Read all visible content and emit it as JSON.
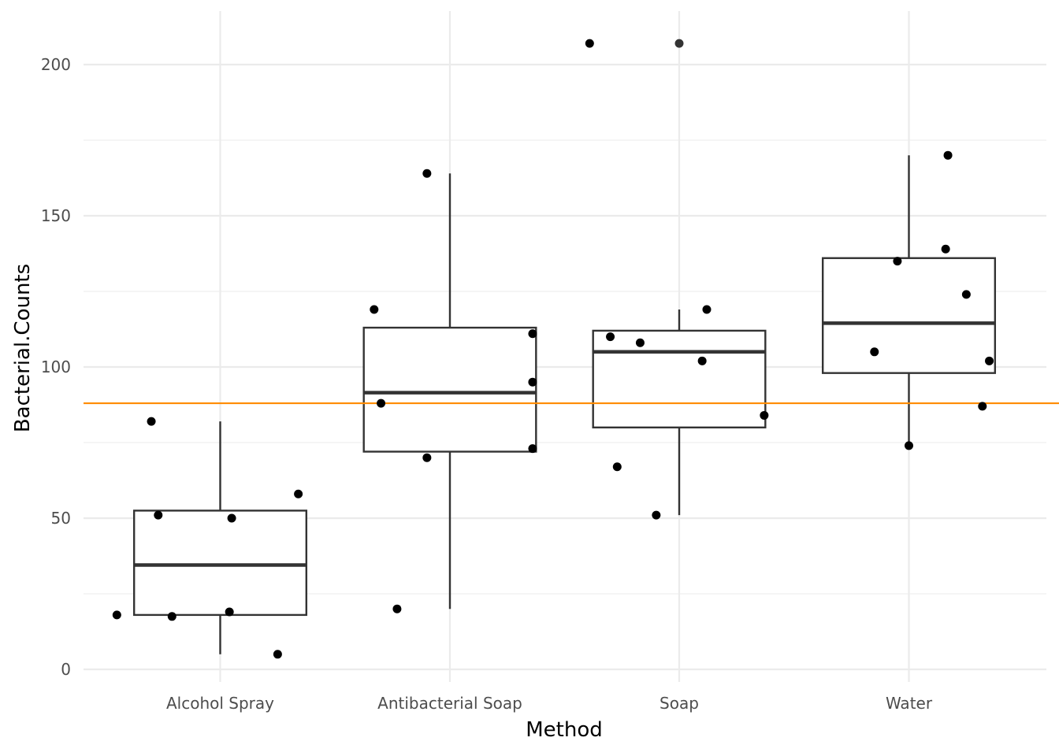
{
  "chart_data": {
    "type": "box",
    "xlabel": "Method",
    "ylabel": "Bacterial.Counts",
    "categories": [
      "Alcohol Spray",
      "Antibacterial Soap",
      "Soap",
      "Water"
    ],
    "ylim": [
      -4,
      218
    ],
    "yticks": [
      0,
      50,
      100,
      150,
      200
    ],
    "grid": true,
    "reference_line": {
      "y": 88,
      "color": "#ff8c00"
    },
    "colors": {
      "box": "#333333",
      "points": "#000000",
      "grid": "#ebebeb"
    },
    "boxes": [
      {
        "category": "Alcohol Spray",
        "q1": 18,
        "median": 34.5,
        "q3": 52.5,
        "whisker_low": 5,
        "whisker_high": 82,
        "outliers": []
      },
      {
        "category": "Antibacterial Soap",
        "q1": 72,
        "median": 91.5,
        "q3": 113,
        "whisker_low": 20,
        "whisker_high": 164,
        "outliers": []
      },
      {
        "category": "Soap",
        "q1": 80,
        "median": 105,
        "q3": 112,
        "whisker_low": 51,
        "whisker_high": 119,
        "outliers": [
          207
        ]
      },
      {
        "category": "Water",
        "q1": 98,
        "median": 114.5,
        "q3": 136,
        "whisker_low": 74,
        "whisker_high": 170,
        "outliers": []
      }
    ],
    "points": [
      {
        "category": "Alcohol Spray",
        "jitter": -0.45,
        "y": 18
      },
      {
        "category": "Alcohol Spray",
        "jitter": -0.3,
        "y": 82
      },
      {
        "category": "Alcohol Spray",
        "jitter": -0.27,
        "y": 51
      },
      {
        "category": "Alcohol Spray",
        "jitter": -0.21,
        "y": 17.5
      },
      {
        "category": "Alcohol Spray",
        "jitter": 0.04,
        "y": 19
      },
      {
        "category": "Alcohol Spray",
        "jitter": 0.05,
        "y": 50
      },
      {
        "category": "Alcohol Spray",
        "jitter": 0.25,
        "y": 5
      },
      {
        "category": "Alcohol Spray",
        "jitter": 0.34,
        "y": 58
      },
      {
        "category": "Antibacterial Soap",
        "jitter": -0.33,
        "y": 119
      },
      {
        "category": "Antibacterial Soap",
        "jitter": -0.3,
        "y": 88
      },
      {
        "category": "Antibacterial Soap",
        "jitter": -0.23,
        "y": 20
      },
      {
        "category": "Antibacterial Soap",
        "jitter": -0.1,
        "y": 70
      },
      {
        "category": "Antibacterial Soap",
        "jitter": -0.1,
        "y": 164
      },
      {
        "category": "Antibacterial Soap",
        "jitter": 0.36,
        "y": 111
      },
      {
        "category": "Antibacterial Soap",
        "jitter": 0.36,
        "y": 95
      },
      {
        "category": "Antibacterial Soap",
        "jitter": 0.36,
        "y": 73
      },
      {
        "category": "Soap",
        "jitter": -0.39,
        "y": 207
      },
      {
        "category": "Soap",
        "jitter": -0.3,
        "y": 110
      },
      {
        "category": "Soap",
        "jitter": -0.27,
        "y": 67
      },
      {
        "category": "Soap",
        "jitter": -0.17,
        "y": 108
      },
      {
        "category": "Soap",
        "jitter": -0.1,
        "y": 51
      },
      {
        "category": "Soap",
        "jitter": 0.1,
        "y": 102
      },
      {
        "category": "Soap",
        "jitter": 0.12,
        "y": 119
      },
      {
        "category": "Soap",
        "jitter": 0.37,
        "y": 84
      },
      {
        "category": "Water",
        "jitter": -0.15,
        "y": 105
      },
      {
        "category": "Water",
        "jitter": -0.05,
        "y": 135
      },
      {
        "category": "Water",
        "jitter": 0.0,
        "y": 74
      },
      {
        "category": "Water",
        "jitter": 0.17,
        "y": 170
      },
      {
        "category": "Water",
        "jitter": 0.16,
        "y": 139
      },
      {
        "category": "Water",
        "jitter": 0.25,
        "y": 124
      },
      {
        "category": "Water",
        "jitter": 0.32,
        "y": 87
      },
      {
        "category": "Water",
        "jitter": 0.35,
        "y": 102
      }
    ]
  }
}
